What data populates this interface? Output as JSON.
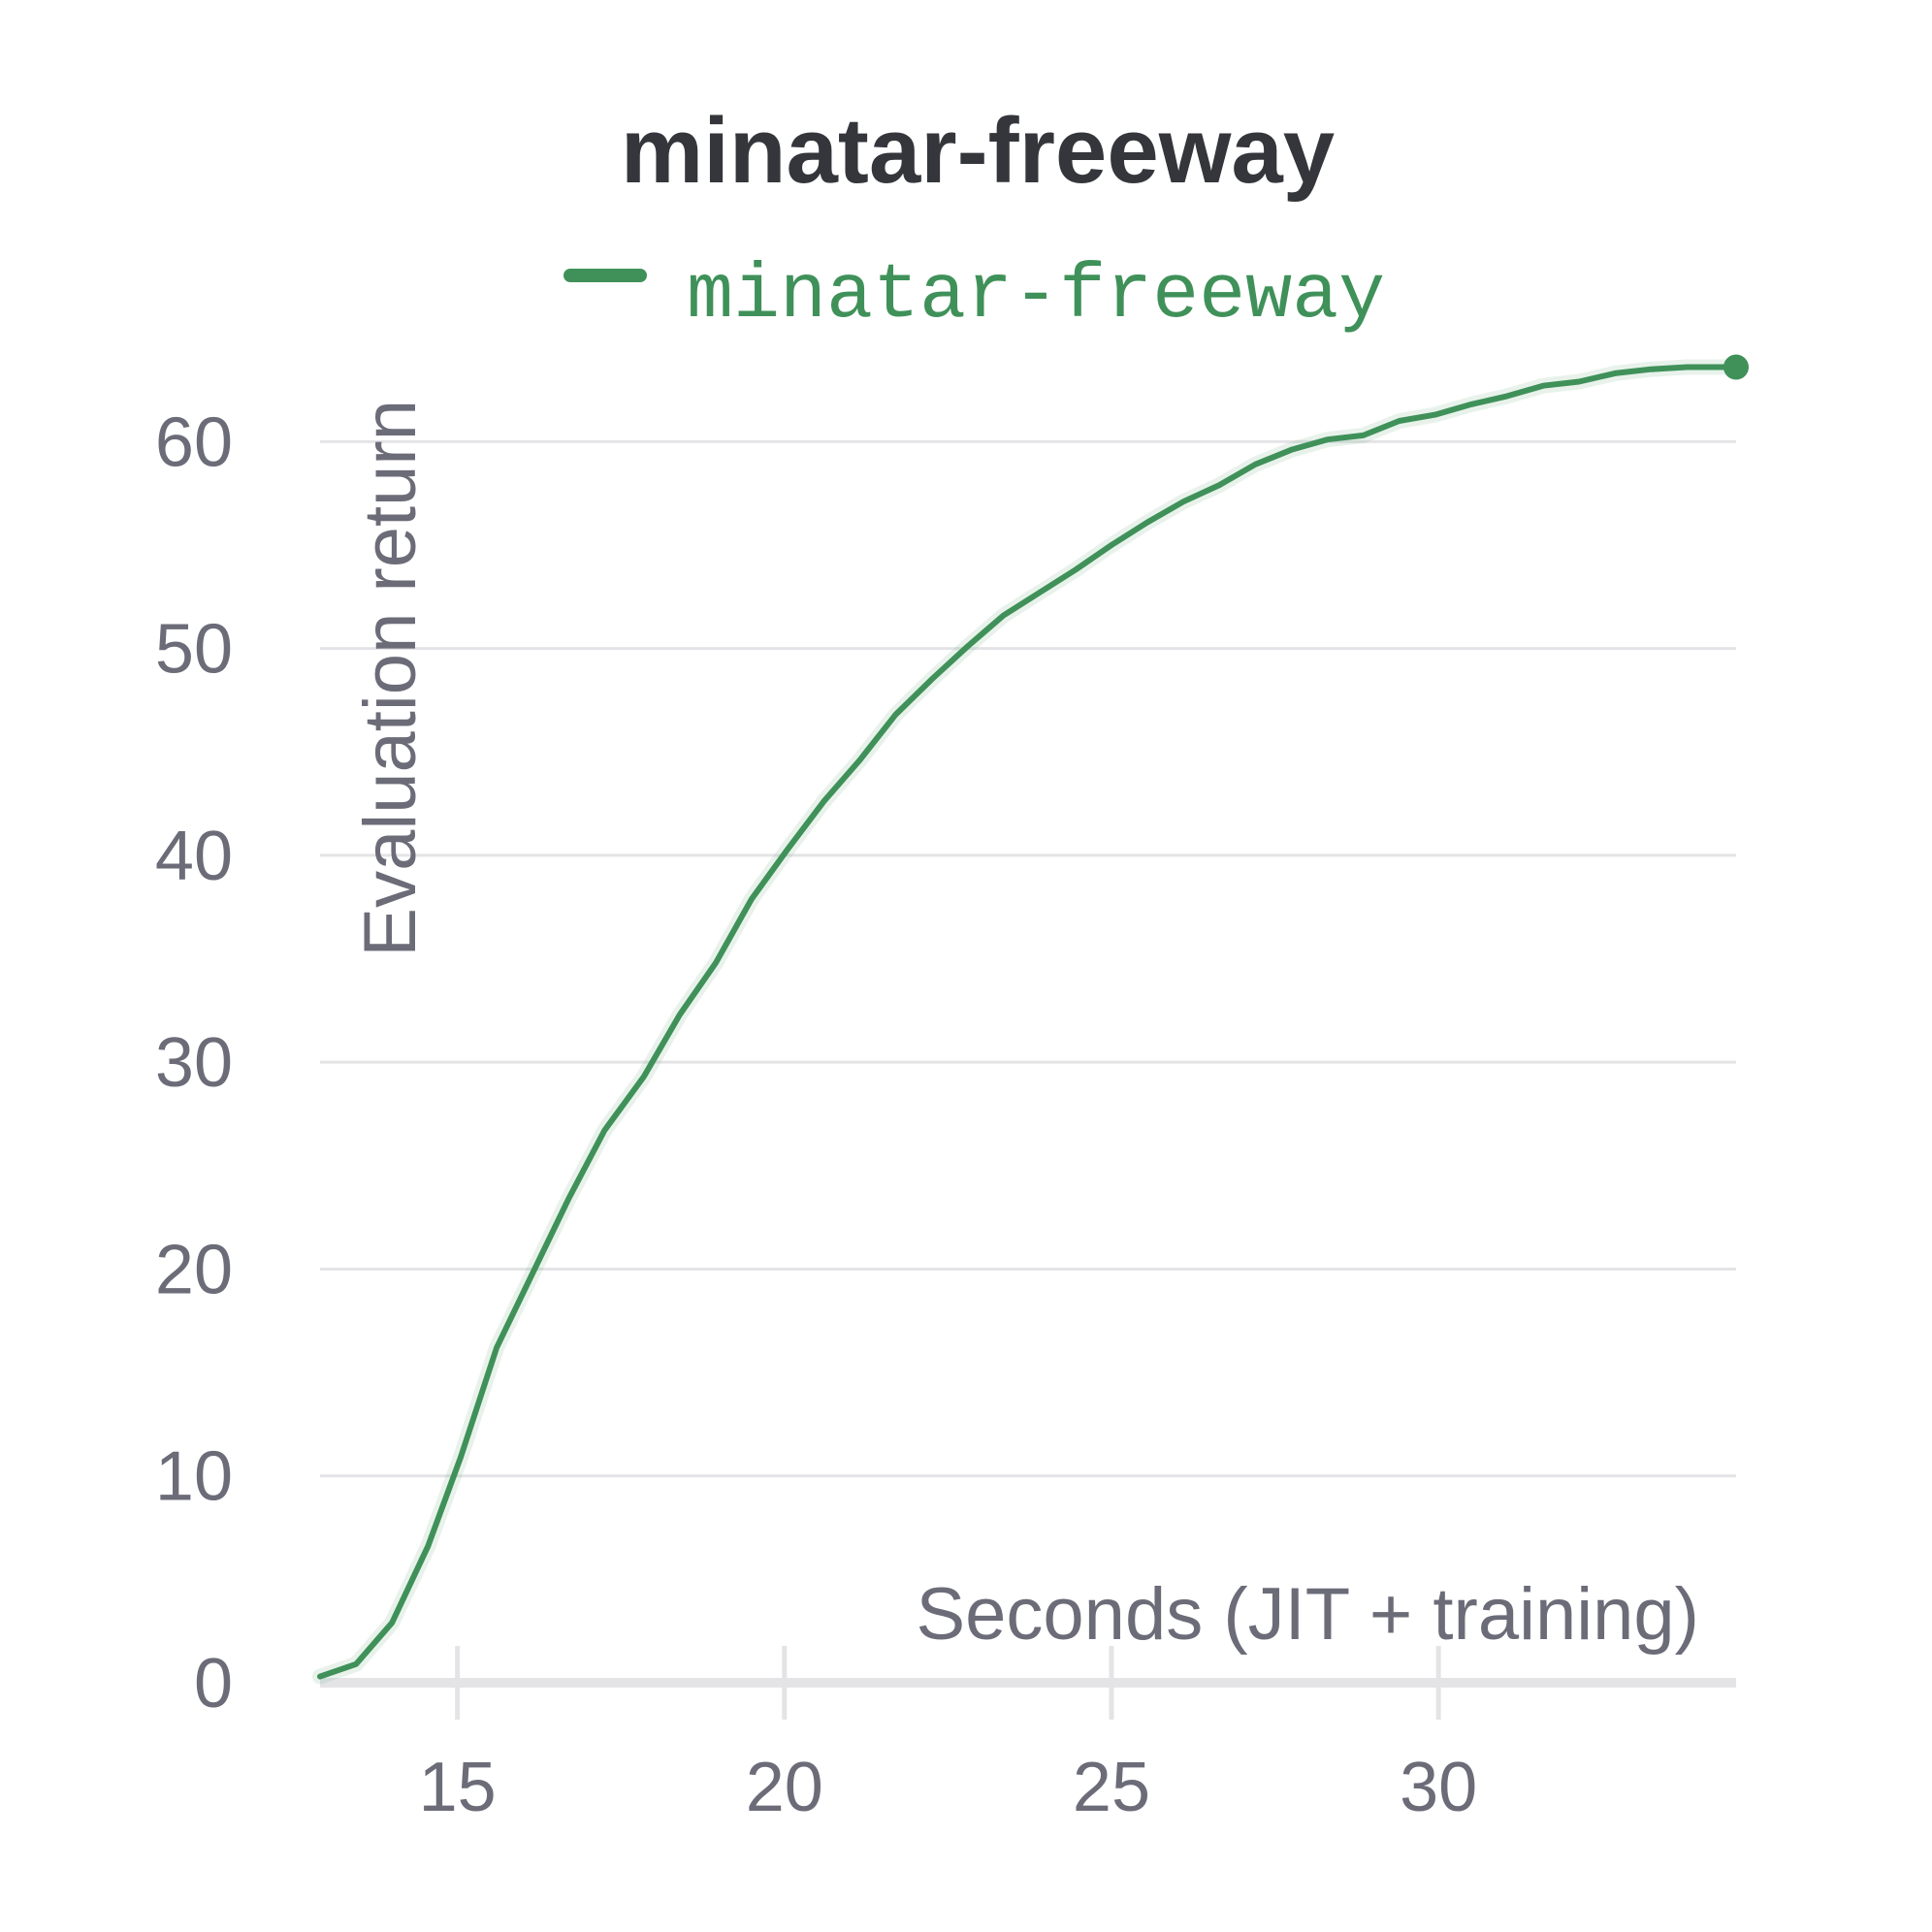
{
  "chart_data": {
    "type": "line",
    "title": "minatar-freeway",
    "xlabel": "Seconds (JIT + training)",
    "ylabel": "Evaluation return",
    "xlim": [
      12.9,
      34.55
    ],
    "ylim": [
      0,
      64
    ],
    "xticks": [
      15,
      20,
      25,
      30
    ],
    "yticks": [
      0,
      10,
      20,
      30,
      40,
      50,
      60
    ],
    "grid": "horizontal",
    "legend_position": "top-center",
    "series": [
      {
        "name": "minatar-freeway",
        "color": "#3f9159",
        "end_marker": true,
        "x": [
          12.9,
          13.45,
          14.0,
          14.55,
          15.05,
          15.6,
          16.15,
          16.7,
          17.25,
          17.85,
          18.4,
          18.95,
          19.5,
          20.05,
          20.6,
          21.15,
          21.7,
          22.25,
          22.8,
          23.35,
          23.9,
          24.45,
          25.0,
          25.55,
          26.1,
          26.65,
          27.2,
          27.75,
          28.3,
          28.85,
          29.4,
          29.95,
          30.5,
          31.05,
          31.6,
          32.15,
          32.7,
          33.25,
          33.8,
          34.55
        ],
        "y": [
          0.3,
          0.9,
          2.9,
          6.6,
          10.9,
          16.2,
          19.8,
          23.4,
          26.7,
          29.3,
          32.3,
          34.8,
          37.9,
          40.3,
          42.6,
          44.6,
          46.8,
          48.5,
          50.1,
          51.6,
          52.7,
          53.8,
          55.0,
          56.1,
          57.1,
          57.9,
          58.9,
          59.6,
          60.1,
          60.3,
          61.0,
          61.3,
          61.8,
          62.2,
          62.7,
          62.9,
          63.3,
          63.5,
          63.6,
          63.6
        ]
      }
    ]
  }
}
